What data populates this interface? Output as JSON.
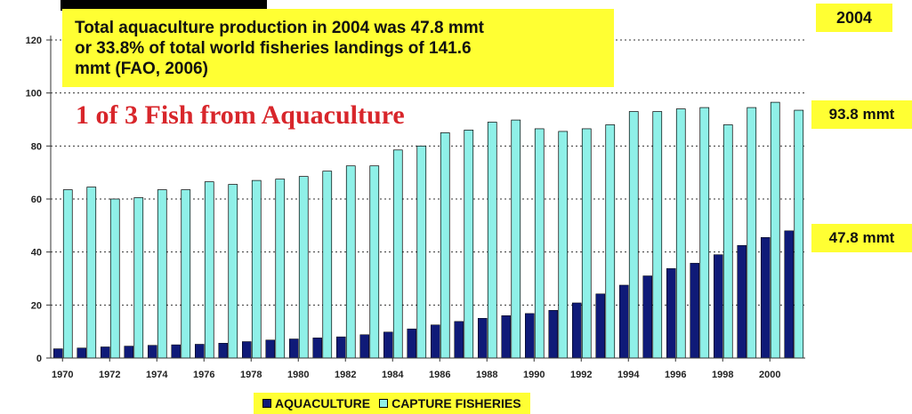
{
  "header": {
    "info_lines": [
      "Total aquaculture production in 2004 was 47.8 mmt",
      "or 33.8% of total world fisheries landings of 141.6",
      "mmt (FAO, 2006)"
    ],
    "subtitle": "1 of 3 Fish from Aquaculture",
    "year_badge": "2004",
    "capture_end_label": "93.8 mmt",
    "aquaculture_end_label": "47.8 mmt"
  },
  "legend": {
    "aquaculture": "AQUACULTURE",
    "capture": "CAPTURE FISHERIES"
  },
  "colors": {
    "aquaculture": "#0f1a78",
    "capture": "#8ff0e8",
    "highlight": "#ffff33",
    "subtitle": "#d8262b"
  },
  "chart_data": {
    "type": "bar",
    "x": [
      1970,
      1971,
      1972,
      1973,
      1974,
      1975,
      1976,
      1977,
      1978,
      1979,
      1980,
      1981,
      1982,
      1983,
      1984,
      1985,
      1986,
      1987,
      1988,
      1989,
      1990,
      1991,
      1992,
      1993,
      1994,
      1995,
      1996,
      1997,
      1998,
      1999,
      2000,
      2001
    ],
    "x_tick_labels": [
      "1970",
      "1972",
      "1974",
      "1976",
      "1978",
      "1980",
      "1982",
      "1984",
      "1986",
      "1988",
      "1990",
      "1992",
      "1994",
      "1996",
      "1998",
      "2000"
    ],
    "y_ticks": [
      0,
      20,
      40,
      60,
      80,
      100,
      120
    ],
    "ylim": [
      0,
      120
    ],
    "grid": "horizontal dotted",
    "legend_position": "bottom",
    "series": [
      {
        "name": "AQUACULTURE",
        "values": [
          3.5,
          3.8,
          4.2,
          4.5,
          4.8,
          5.0,
          5.2,
          5.6,
          6.2,
          6.8,
          7.2,
          7.6,
          8.0,
          8.8,
          9.8,
          11.0,
          12.5,
          13.8,
          15.0,
          16.0,
          16.8,
          18.0,
          20.8,
          24.2,
          27.5,
          31.0,
          33.8,
          35.8,
          39.0,
          42.5,
          45.5,
          48.0
        ]
      },
      {
        "name": "CAPTURE FISHERIES",
        "values": [
          63.5,
          64.5,
          60.0,
          60.5,
          63.5,
          63.5,
          66.5,
          65.5,
          67.0,
          67.5,
          68.5,
          70.5,
          72.5,
          72.5,
          78.5,
          80.0,
          85.0,
          86.0,
          89.0,
          89.8,
          86.5,
          85.5,
          86.5,
          88.0,
          93.0,
          93.0,
          94.0,
          94.5,
          88.0,
          94.5,
          96.5,
          93.5
        ]
      }
    ]
  }
}
